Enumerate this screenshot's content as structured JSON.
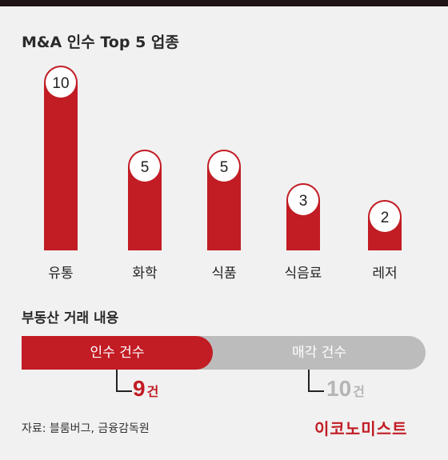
{
  "title": "M&A 인수 Top 5 업종",
  "chart_data": {
    "type": "bar",
    "title": "M&A 인수 Top 5 업종",
    "categories": [
      "유통",
      "화학",
      "식품",
      "식음료",
      "레저"
    ],
    "values": [
      10,
      5,
      5,
      3,
      2
    ],
    "value_labels": [
      "10",
      "5",
      "5",
      "3",
      "2"
    ],
    "bar_color": "#c21c24",
    "ylim": [
      0,
      10
    ],
    "grid": false
  },
  "deals": {
    "title": "부동산 거래 내용",
    "acquisition_label": "인수 건수",
    "acquisition_count": "9",
    "acquisition_value": 9,
    "sale_label": "매각 건수",
    "sale_count": "10",
    "sale_value": 10,
    "unit": "건",
    "acq_color": "#c21c24",
    "sale_color": "#bcbcbc"
  },
  "source": "자료: 블룸버그, 금융감독원",
  "brand": "이코노미스트"
}
